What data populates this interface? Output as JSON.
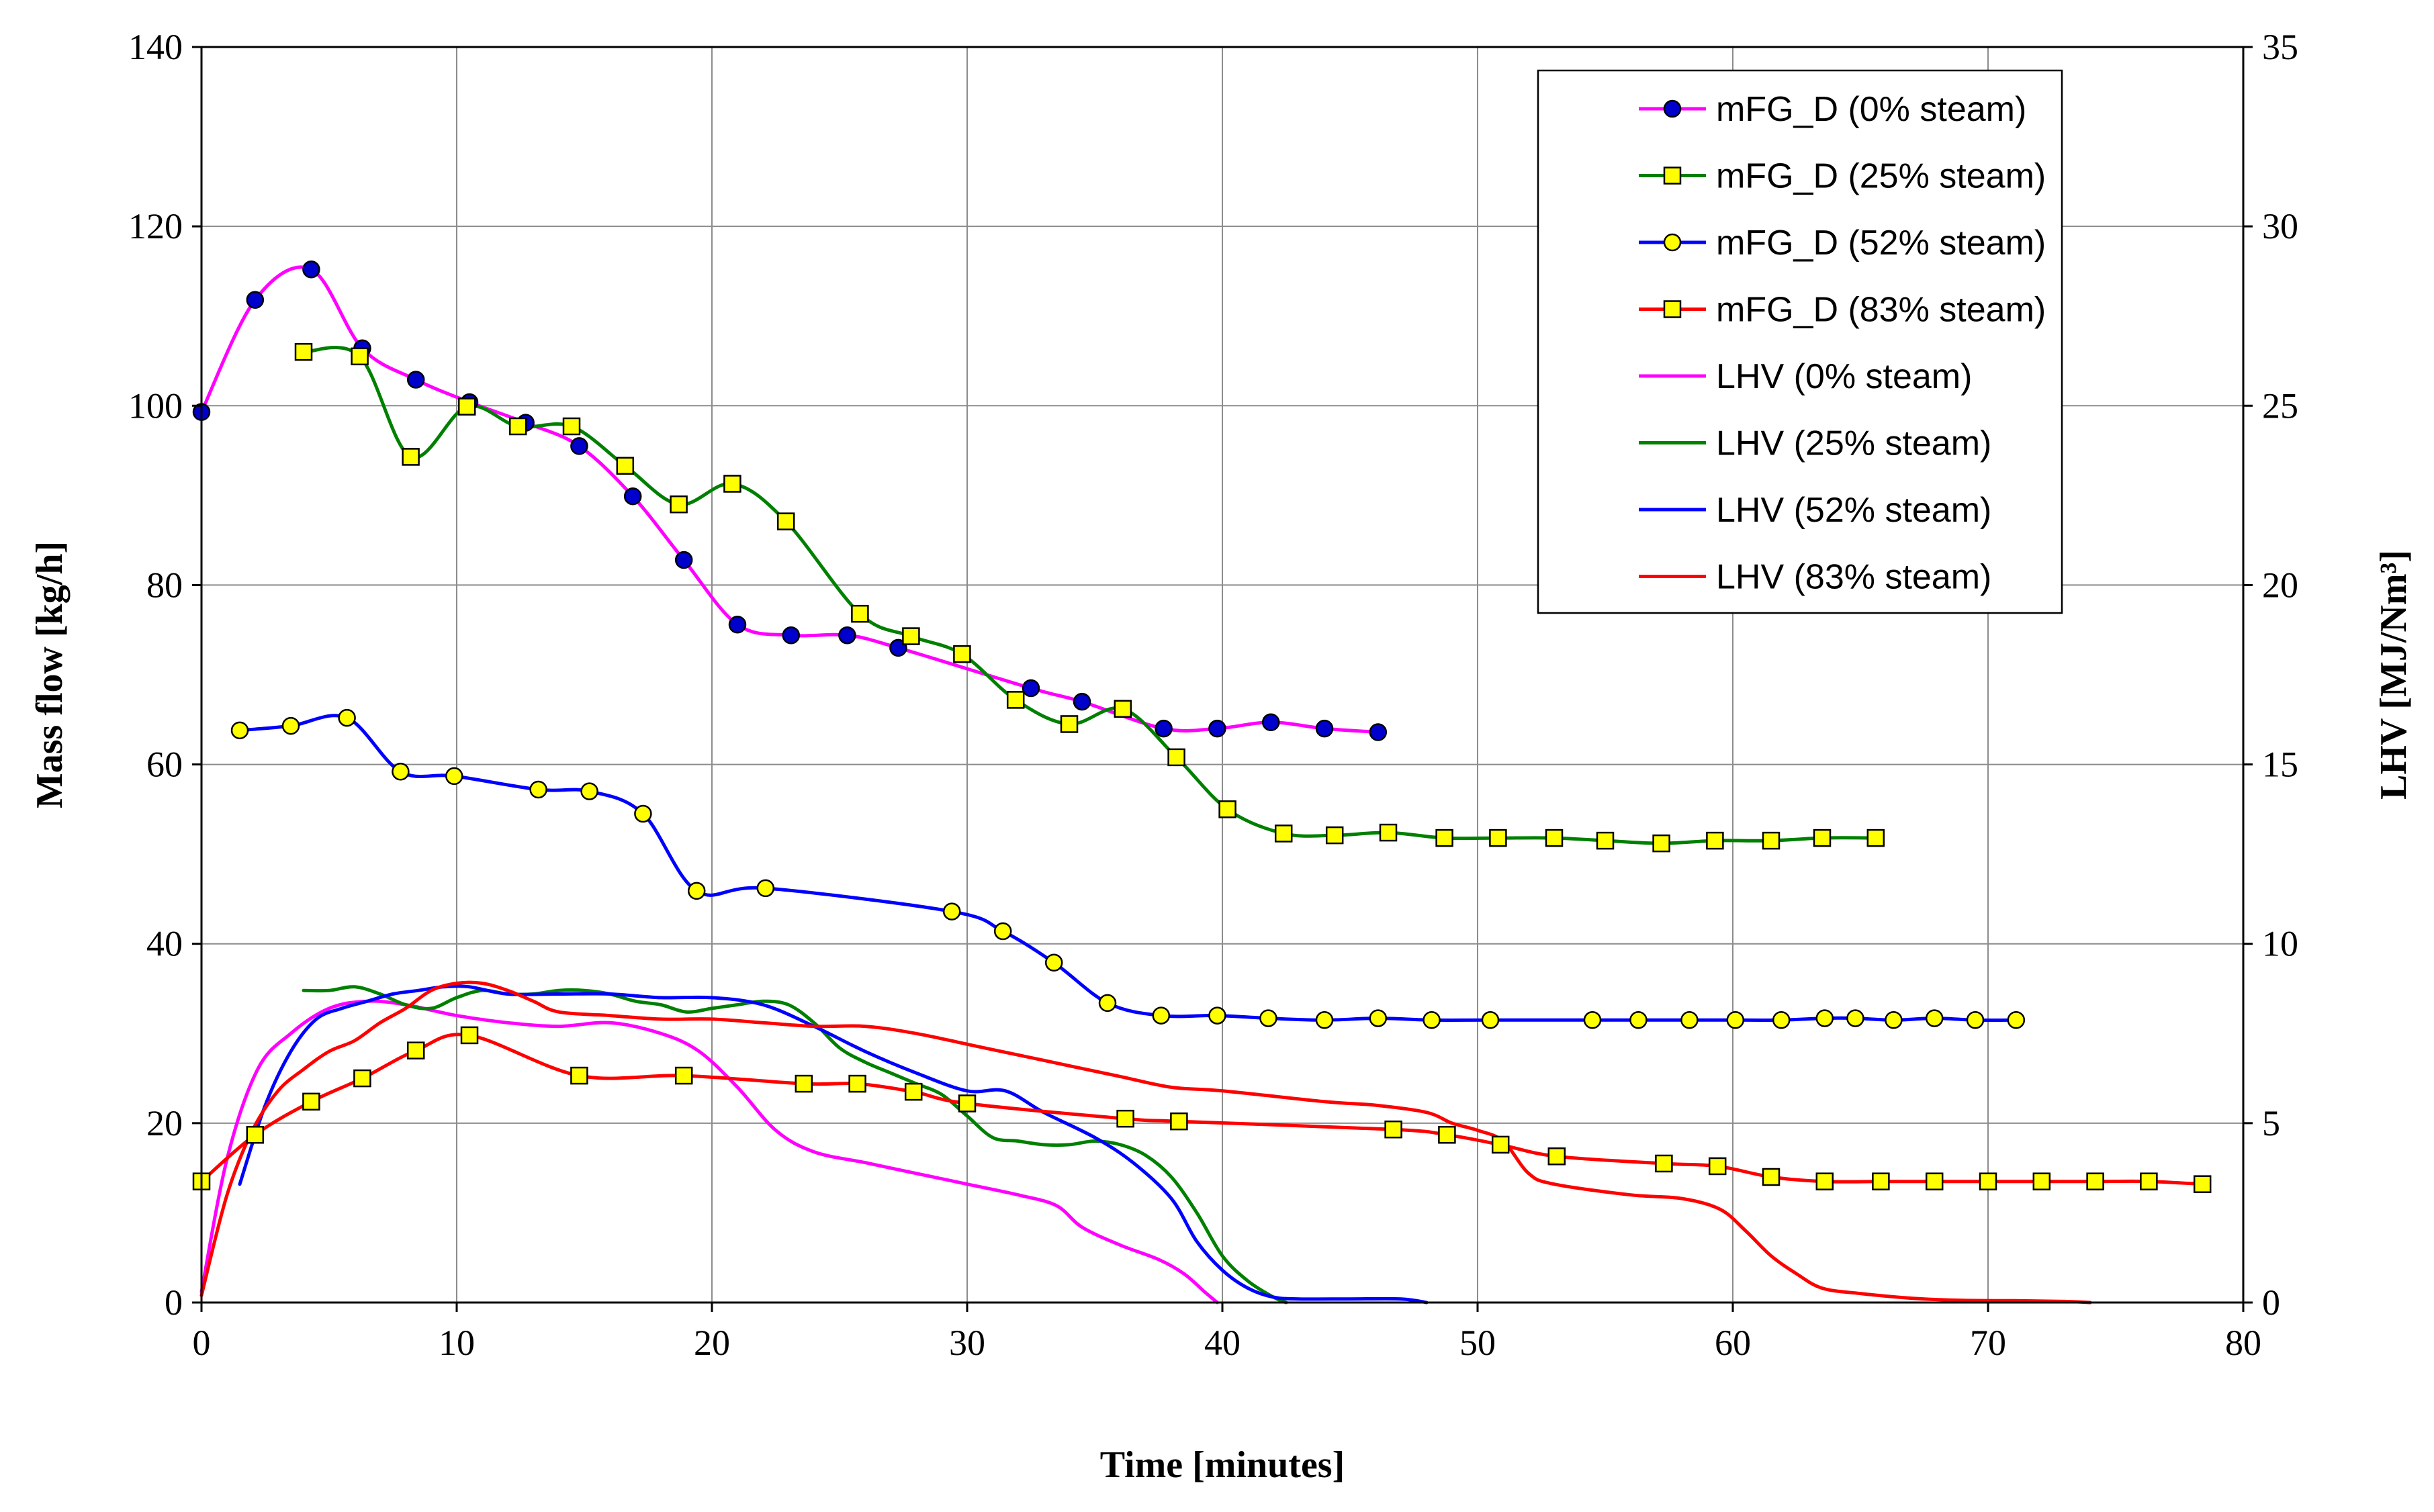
{
  "chart_data": {
    "type": "line",
    "title": "",
    "xlabel": "Time [minutes]",
    "ylabel_left": "Mass flow [kg/h]",
    "ylabel_right": "LHV [MJ/Nm³]",
    "xlim": [
      0,
      80
    ],
    "ylim_left": [
      0,
      140
    ],
    "ylim_right": [
      0,
      35
    ],
    "x_ticks": [
      0,
      10,
      20,
      30,
      40,
      50,
      60,
      70,
      80
    ],
    "y_left_ticks": [
      0,
      20,
      40,
      60,
      80,
      100,
      120,
      140
    ],
    "y_right_ticks": [
      0,
      5,
      10,
      15,
      20,
      25,
      30,
      35
    ],
    "grid": true,
    "legend_position": "top-right",
    "series": [
      {
        "name": "mFG_D (0% steam)",
        "axis": "left",
        "color": "#ff00ff",
        "marker": "circle",
        "marker_fill": "#0000cc",
        "x": [
          0,
          2.1,
          4.3,
          6.3,
          8.4,
          10.5,
          12.7,
          14.8,
          16.9,
          18.9,
          21.0,
          23.1,
          25.3,
          27.3,
          32.5,
          34.5,
          37.7,
          39.8,
          41.9,
          44.0,
          46.1
        ],
        "y": [
          99.3,
          111.8,
          115.2,
          106.4,
          102.9,
          100.4,
          98.1,
          95.5,
          89.9,
          82.8,
          75.6,
          74.4,
          74.4,
          73.0,
          68.5,
          67.0,
          64.0,
          64.0,
          64.7,
          64.0,
          63.6
        ]
      },
      {
        "name": "mFG_D (25% steam)",
        "axis": "left",
        "color": "#008000",
        "marker": "square",
        "marker_fill": "#ffff00",
        "x": [
          4.0,
          6.2,
          8.2,
          10.4,
          12.4,
          14.5,
          16.6,
          18.7,
          20.8,
          22.9,
          25.8,
          27.8,
          29.8,
          31.9,
          34.0,
          36.1,
          38.2,
          40.2,
          42.4,
          44.4,
          46.5,
          48.7,
          50.8,
          53.0,
          55.0,
          57.2,
          59.3,
          61.5,
          63.5,
          65.6
        ],
        "y": [
          106.0,
          105.5,
          94.3,
          99.9,
          97.7,
          97.7,
          93.3,
          89.0,
          91.3,
          87.1,
          76.8,
          74.3,
          72.3,
          67.2,
          64.5,
          66.2,
          60.8,
          55.0,
          52.3,
          52.1,
          52.4,
          51.8,
          51.8,
          51.8,
          51.5,
          51.2,
          51.5,
          51.5,
          51.8,
          51.8
        ]
      },
      {
        "name": "mFG_D (52% steam)",
        "axis": "left",
        "color": "#0000ff",
        "marker": "circle",
        "marker_fill": "#ffff00",
        "x": [
          1.5,
          3.5,
          5.7,
          7.8,
          9.9,
          13.2,
          15.2,
          17.3,
          19.4,
          22.1,
          29.4,
          31.4,
          33.4,
          35.5,
          37.6,
          39.8,
          41.8,
          44.0,
          46.1,
          48.2,
          50.5,
          54.5,
          56.3,
          58.3,
          60.1,
          61.9,
          63.6,
          64.8,
          66.3,
          67.9,
          69.5,
          71.1
        ],
        "y": [
          63.8,
          64.3,
          65.2,
          59.2,
          58.7,
          57.2,
          57.0,
          54.5,
          45.9,
          46.2,
          43.6,
          41.4,
          37.9,
          33.4,
          32.0,
          32.0,
          31.7,
          31.5,
          31.7,
          31.5,
          31.5,
          31.5,
          31.5,
          31.5,
          31.5,
          31.5,
          31.7,
          31.7,
          31.5,
          31.7,
          31.5,
          31.5
        ]
      },
      {
        "name": "mFG_D (83% steam)",
        "axis": "left",
        "color": "#ff0000",
        "marker": "square",
        "marker_fill": "#ffff00",
        "x": [
          0,
          2.1,
          4.3,
          6.3,
          8.4,
          10.5,
          14.8,
          18.9,
          23.6,
          25.7,
          27.9,
          30.0,
          36.2,
          38.3,
          46.7,
          48.8,
          50.9,
          53.1,
          57.3,
          59.4,
          61.5,
          63.6,
          65.8,
          67.9,
          70.0,
          72.1,
          74.2,
          76.3,
          78.4
        ],
        "y": [
          13.5,
          18.7,
          22.4,
          25.0,
          28.1,
          29.8,
          25.3,
          25.3,
          24.4,
          24.4,
          23.5,
          22.2,
          20.5,
          20.2,
          19.3,
          18.7,
          17.6,
          16.3,
          15.5,
          15.2,
          14.0,
          13.5,
          13.5,
          13.5,
          13.5,
          13.5,
          13.5,
          13.5,
          13.2
        ]
      },
      {
        "name": "LHV (0% steam)",
        "axis": "right",
        "color": "#ff00ff",
        "marker": "none",
        "x": [
          0,
          1,
          2.2,
          3.5,
          5,
          6.5,
          8,
          10,
          12,
          14,
          16,
          18,
          19.5,
          21,
          22.5,
          24,
          26,
          28,
          30,
          32,
          33.5,
          34.5,
          36,
          37.5,
          38.5,
          39.3,
          39.8
        ],
        "y": [
          0.3,
          4.0,
          6.5,
          7.5,
          8.2,
          8.4,
          8.3,
          8.0,
          7.8,
          7.7,
          7.8,
          7.5,
          7.0,
          6.0,
          4.8,
          4.2,
          3.9,
          3.6,
          3.3,
          3.0,
          2.7,
          2.1,
          1.6,
          1.2,
          0.8,
          0.3,
          0
        ]
      },
      {
        "name": "LHV (25% steam)",
        "axis": "right",
        "color": "#008000",
        "marker": "none",
        "x": [
          4,
          5,
          6,
          7,
          8,
          9,
          10,
          11,
          12,
          13,
          14,
          15,
          16,
          17,
          18,
          19,
          20,
          21,
          22,
          23,
          24,
          25,
          26,
          27,
          28,
          29,
          30,
          31,
          32,
          33,
          34,
          35,
          36,
          37,
          38,
          39,
          40,
          41,
          42,
          42.5
        ],
        "y": [
          8.7,
          8.7,
          8.8,
          8.6,
          8.3,
          8.2,
          8.5,
          8.7,
          8.6,
          8.6,
          8.7,
          8.7,
          8.6,
          8.4,
          8.3,
          8.1,
          8.2,
          8.3,
          8.4,
          8.3,
          7.8,
          7.1,
          6.7,
          6.4,
          6.1,
          5.8,
          5.2,
          4.6,
          4.5,
          4.4,
          4.4,
          4.5,
          4.4,
          4.1,
          3.5,
          2.5,
          1.3,
          0.6,
          0.15,
          0
        ]
      },
      {
        "name": "LHV (52% steam)",
        "axis": "right",
        "color": "#0000ff",
        "marker": "none",
        "x": [
          1.5,
          2.5,
          3.5,
          4.5,
          5.5,
          6.5,
          7.5,
          8.5,
          9.5,
          10.5,
          12,
          14,
          16,
          18,
          20,
          22,
          24,
          26,
          28,
          30,
          31.5,
          33,
          35,
          36.5,
          38,
          39,
          40,
          41,
          42,
          43,
          45,
          47,
          48
        ],
        "y": [
          3.3,
          5.5,
          7.0,
          7.9,
          8.2,
          8.4,
          8.6,
          8.7,
          8.8,
          8.8,
          8.6,
          8.6,
          8.6,
          8.5,
          8.5,
          8.3,
          7.7,
          7.0,
          6.4,
          5.9,
          5.9,
          5.3,
          4.6,
          3.9,
          2.9,
          1.7,
          0.9,
          0.4,
          0.15,
          0.1,
          0.1,
          0.1,
          0
        ]
      },
      {
        "name": "LHV (83% steam)",
        "axis": "right",
        "color": "#ff0000",
        "marker": "none",
        "x": [
          0,
          1,
          2,
          3,
          4,
          5,
          6,
          7,
          8,
          9,
          10,
          11,
          12,
          13,
          14,
          16,
          18,
          20,
          22,
          24,
          26,
          28,
          30,
          32,
          34,
          36,
          38,
          40,
          44,
          46,
          48,
          49,
          50,
          51,
          52,
          53,
          56,
          58,
          59.5,
          60.5,
          61.5,
          62.5,
          63.5,
          65,
          67,
          69,
          71,
          73,
          74
        ],
        "y": [
          0.2,
          3.0,
          4.8,
          5.9,
          6.5,
          7.0,
          7.3,
          7.8,
          8.2,
          8.7,
          8.9,
          8.9,
          8.7,
          8.4,
          8.1,
          8.0,
          7.9,
          7.9,
          7.8,
          7.7,
          7.7,
          7.5,
          7.2,
          6.9,
          6.6,
          6.3,
          6.0,
          5.9,
          5.6,
          5.5,
          5.3,
          5.0,
          4.8,
          4.5,
          3.6,
          3.3,
          3.0,
          2.9,
          2.6,
          2.0,
          1.3,
          0.8,
          0.4,
          0.25,
          0.12,
          0.06,
          0.05,
          0.03,
          0
        ]
      }
    ]
  }
}
